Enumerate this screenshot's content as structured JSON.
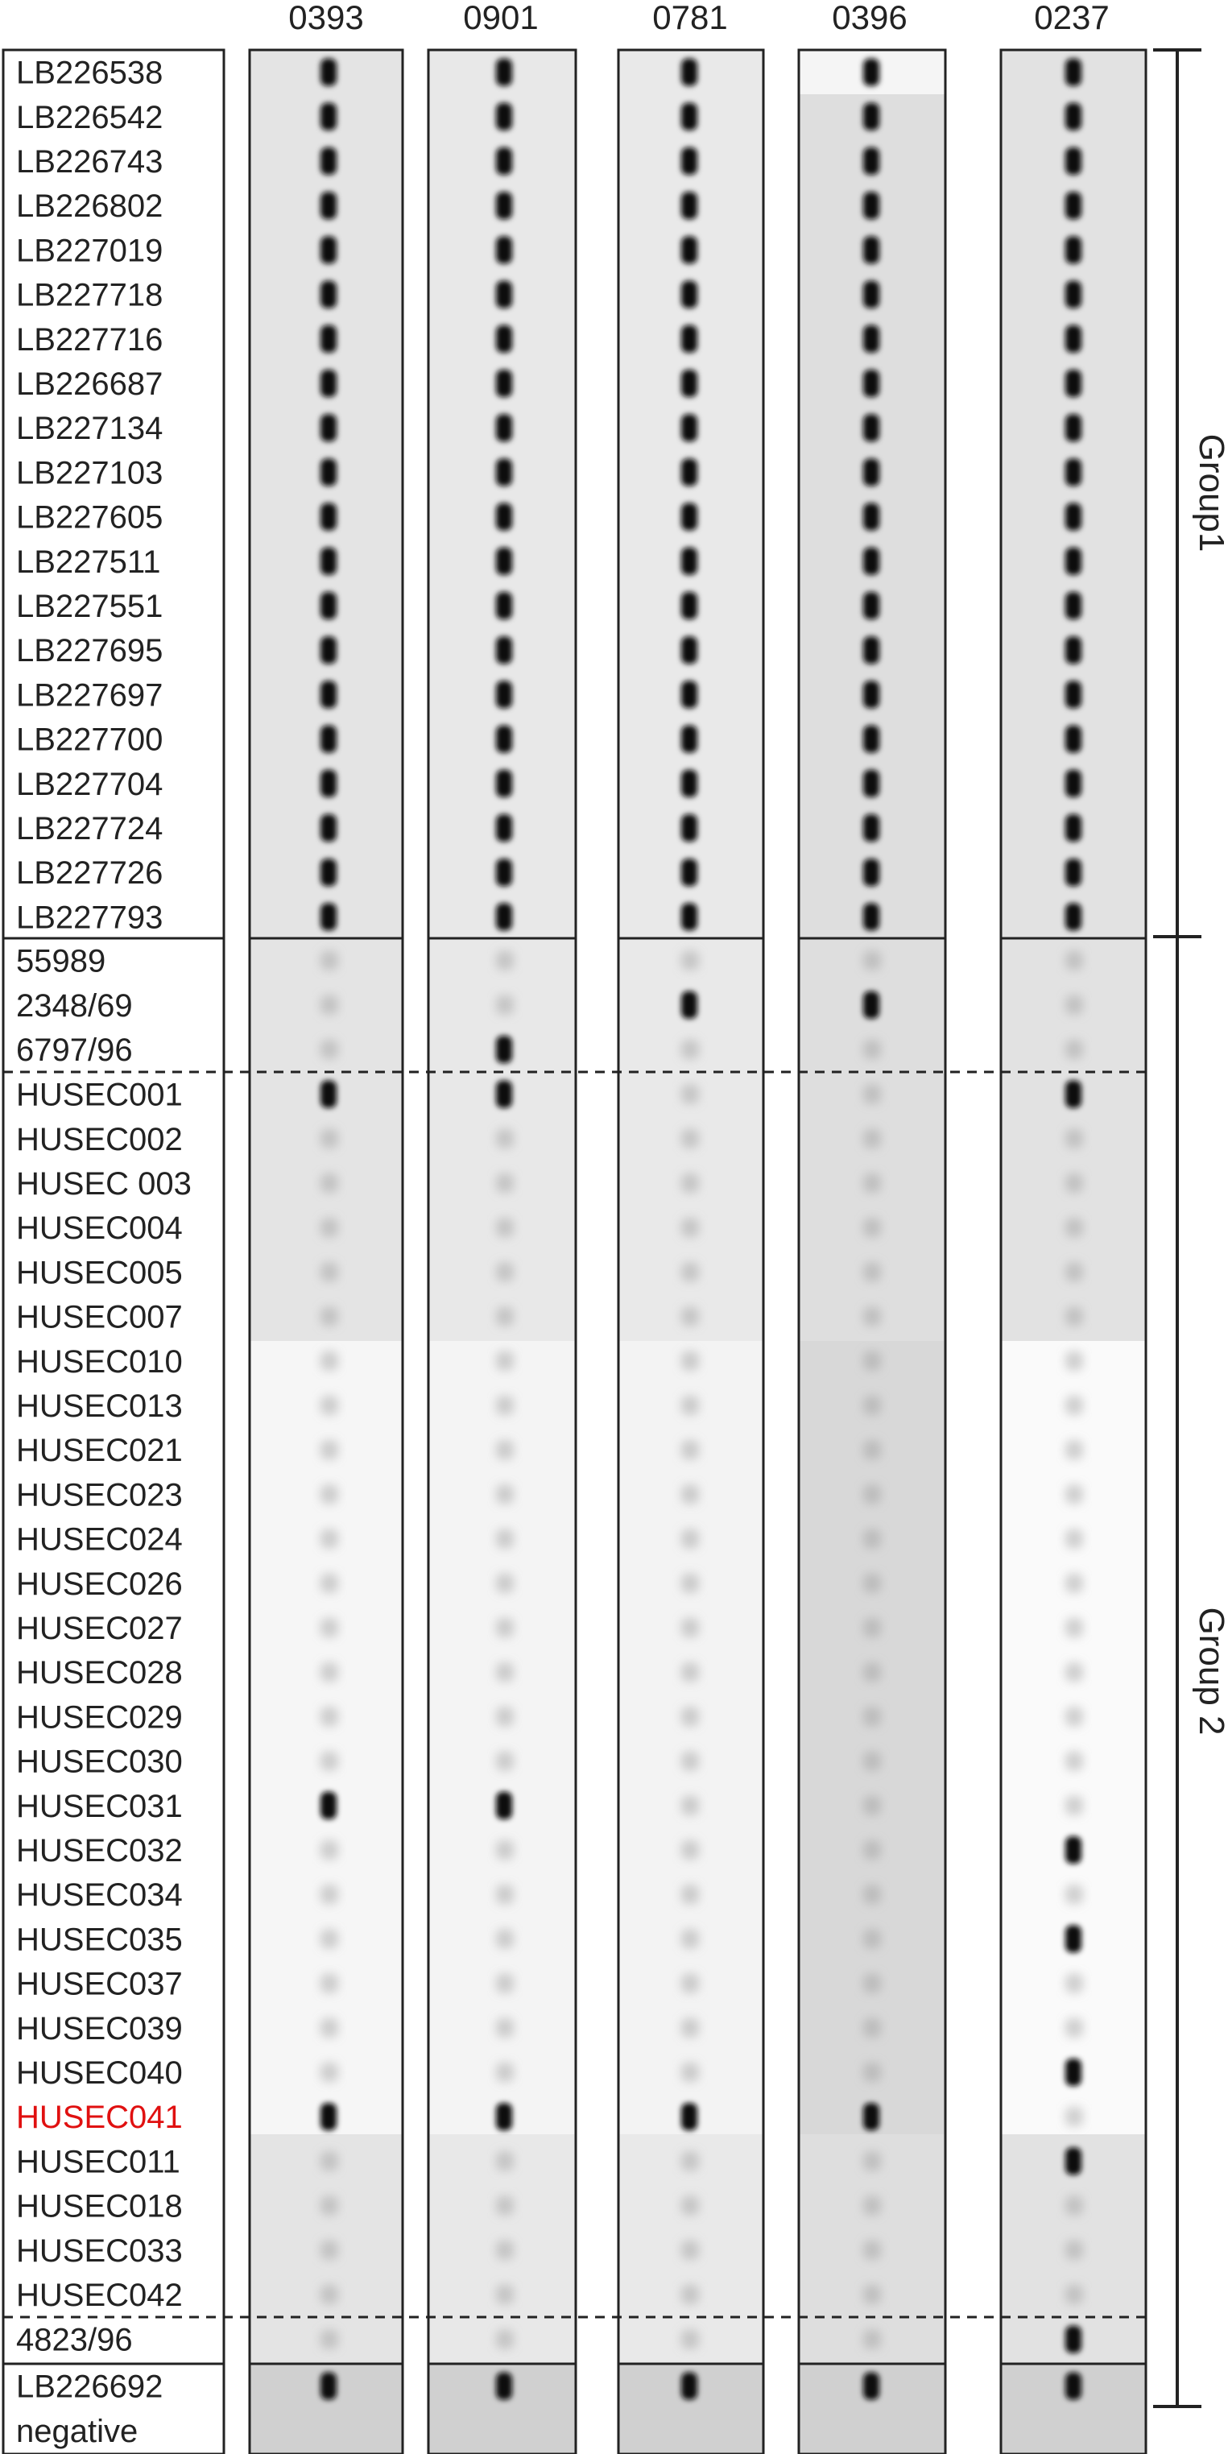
{
  "lane_headers": [
    "0393",
    "0901",
    "0781",
    "0396",
    "0237"
  ],
  "group_labels": [
    "Group1",
    "Group 2"
  ],
  "highlight_color": "#e01010",
  "ink_color": "#222222",
  "section_group1": {
    "name": "Group1",
    "samples": [
      "LB226538",
      "LB226542",
      "LB226743",
      "LB226802",
      "LB227019",
      "LB227718",
      "LB227716",
      "LB226687",
      "LB227134",
      "LB227103",
      "LB227605",
      "LB227511",
      "LB227551",
      "LB227695",
      "LB227697",
      "LB227700",
      "LB227704",
      "LB227724",
      "LB227726",
      "LB227793"
    ]
  },
  "section_group2a": {
    "name": "Group 2",
    "samples": [
      "55989",
      "2348/69",
      "6797/96"
    ]
  },
  "section_group2b": {
    "name": "Group 2",
    "samples": [
      "HUSEC001",
      "HUSEC002",
      "HUSEC 003",
      "HUSEC004",
      "HUSEC005",
      "HUSEC007",
      "HUSEC010",
      "HUSEC013",
      "HUSEC021",
      "HUSEC023",
      "HUSEC024",
      "HUSEC026",
      "HUSEC027",
      "HUSEC028",
      "HUSEC029",
      "HUSEC030",
      "HUSEC031",
      "HUSEC032",
      "HUSEC034",
      "HUSEC035",
      "HUSEC037",
      "HUSEC039",
      "HUSEC040",
      "HUSEC041",
      "HUSEC011",
      "HUSEC018",
      "HUSEC033",
      "HUSEC042"
    ],
    "highlighted_sample": "HUSEC041"
  },
  "section_group2c": {
    "name": "Group 2",
    "samples": [
      "4823/96"
    ]
  },
  "section_controls": {
    "samples": [
      "LB226692",
      "negative"
    ]
  },
  "band_presence": {
    "0393": {
      "group1": "all",
      "positive": [
        "HUSEC001",
        "HUSEC031",
        "HUSEC041",
        "LB226692"
      ]
    },
    "0901": {
      "group1": "all",
      "positive": [
        "6797/96",
        "HUSEC001",
        "HUSEC031",
        "HUSEC041",
        "LB226692"
      ]
    },
    "0781": {
      "group1": "all",
      "positive": [
        "2348/69",
        "HUSEC041",
        "LB226692"
      ]
    },
    "0396": {
      "group1": "all",
      "positive": [
        "2348/69",
        "HUSEC041",
        "LB226692"
      ]
    },
    "0237": {
      "group1": "all",
      "positive": [
        "HUSEC001",
        "HUSEC032",
        "HUSEC035",
        "HUSEC040",
        "HUSEC011",
        "4823/96",
        "LB226692"
      ]
    }
  }
}
